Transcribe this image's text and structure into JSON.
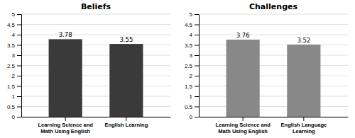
{
  "chart_data": [
    {
      "type": "bar",
      "title": "Beliefs",
      "categories": [
        "Learning Science and\nMath Using English",
        "English Learning"
      ],
      "values": [
        3.78,
        3.55
      ],
      "color": "#3a3a3a",
      "ylim": [
        0,
        5
      ],
      "yticks": [
        0,
        0.5,
        1,
        1.5,
        2,
        2.5,
        3,
        3.5,
        4,
        4.5,
        5
      ],
      "grid": true,
      "data_labels": true
    },
    {
      "type": "bar",
      "title": "Challenges",
      "categories": [
        "Learning Science and\nMath Using English",
        "English Language\nLearning"
      ],
      "values": [
        3.76,
        3.52
      ],
      "color": "#888888",
      "ylim": [
        0,
        5
      ],
      "yticks": [
        0,
        0.5,
        1,
        1.5,
        2,
        2.5,
        3,
        3.5,
        4,
        4.5,
        5
      ],
      "grid": true,
      "data_labels": true
    }
  ]
}
